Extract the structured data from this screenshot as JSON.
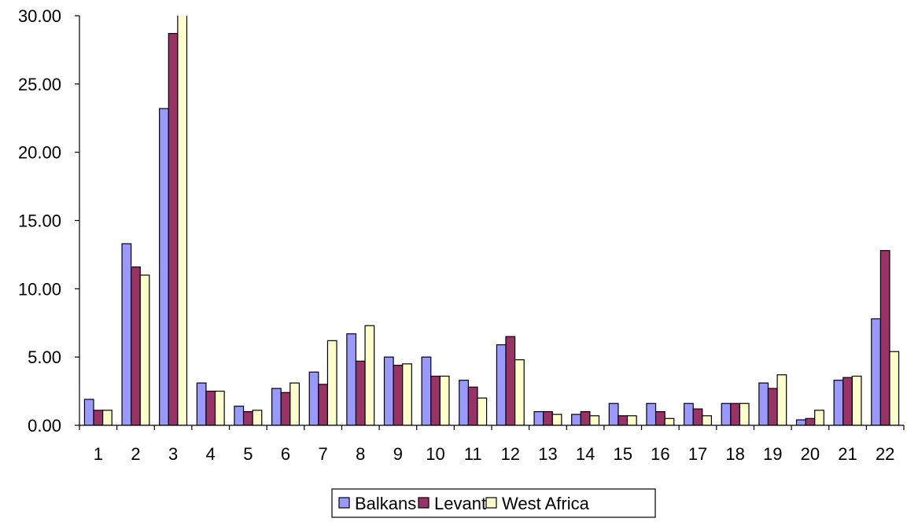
{
  "chart_data": {
    "type": "bar",
    "title": "",
    "xlabel": "",
    "ylabel": "",
    "categories": [
      "1",
      "2",
      "3",
      "4",
      "5",
      "6",
      "7",
      "8",
      "9",
      "10",
      "11",
      "12",
      "13",
      "14",
      "15",
      "16",
      "17",
      "18",
      "19",
      "20",
      "21",
      "22"
    ],
    "ylim": [
      0,
      30
    ],
    "yticks": [
      0,
      5,
      10,
      15,
      20,
      25,
      30
    ],
    "ytick_labels": [
      "0.00",
      "5.00",
      "10.00",
      "15.00",
      "20.00",
      "25.00",
      "30.00"
    ],
    "grid": false,
    "legend_position": "bottom",
    "series": [
      {
        "name": "Balkans",
        "color": "#9999ff",
        "values": [
          1.9,
          13.3,
          23.2,
          3.1,
          1.4,
          2.7,
          3.9,
          6.7,
          5.0,
          5.0,
          3.3,
          5.9,
          1.0,
          0.8,
          1.6,
          1.6,
          1.6,
          1.6,
          3.1,
          0.4,
          3.3,
          7.8
        ]
      },
      {
        "name": "Levant",
        "color": "#993366",
        "values": [
          1.1,
          11.6,
          28.7,
          2.5,
          1.0,
          2.4,
          3.0,
          4.7,
          4.4,
          3.6,
          2.8,
          6.5,
          1.0,
          1.0,
          0.7,
          1.0,
          1.2,
          1.6,
          2.7,
          0.5,
          3.5,
          12.8
        ]
      },
      {
        "name": "West Africa",
        "color": "#ffffcc",
        "values": [
          1.1,
          11.0,
          30.4,
          2.5,
          1.1,
          3.1,
          6.2,
          7.3,
          4.5,
          3.6,
          2.0,
          4.8,
          0.8,
          0.7,
          0.7,
          0.5,
          0.7,
          1.6,
          3.7,
          1.1,
          3.6,
          5.4
        ]
      }
    ]
  }
}
